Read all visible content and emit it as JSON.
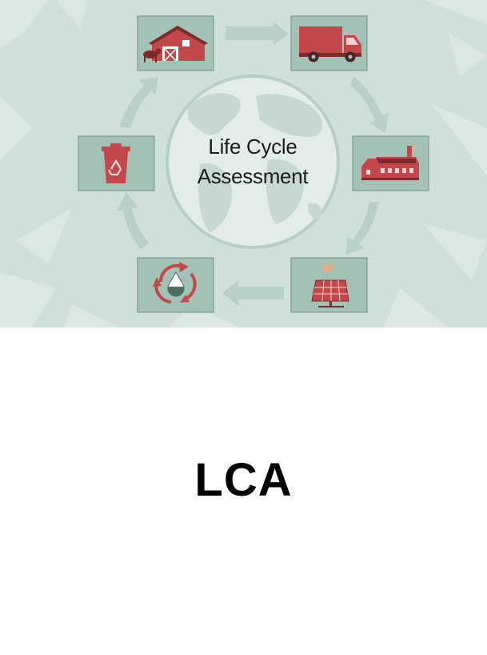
{
  "diagram": {
    "title_line1": "Life Cycle",
    "title_line2": "Assessment",
    "stages": [
      {
        "icon": "barn-icon"
      },
      {
        "icon": "delivery-truck-icon"
      },
      {
        "icon": "factory-icon"
      },
      {
        "icon": "solar-panel-icon"
      },
      {
        "icon": "water-recycle-icon"
      },
      {
        "icon": "recycling-bin-icon"
      }
    ],
    "colors": {
      "background": "#cfe0d9",
      "tile": "#a3c2b5",
      "accent_red": "#c2484b",
      "arrow": "#b8d0c6",
      "globe": "#e2ece8"
    }
  },
  "caption": "LCA"
}
